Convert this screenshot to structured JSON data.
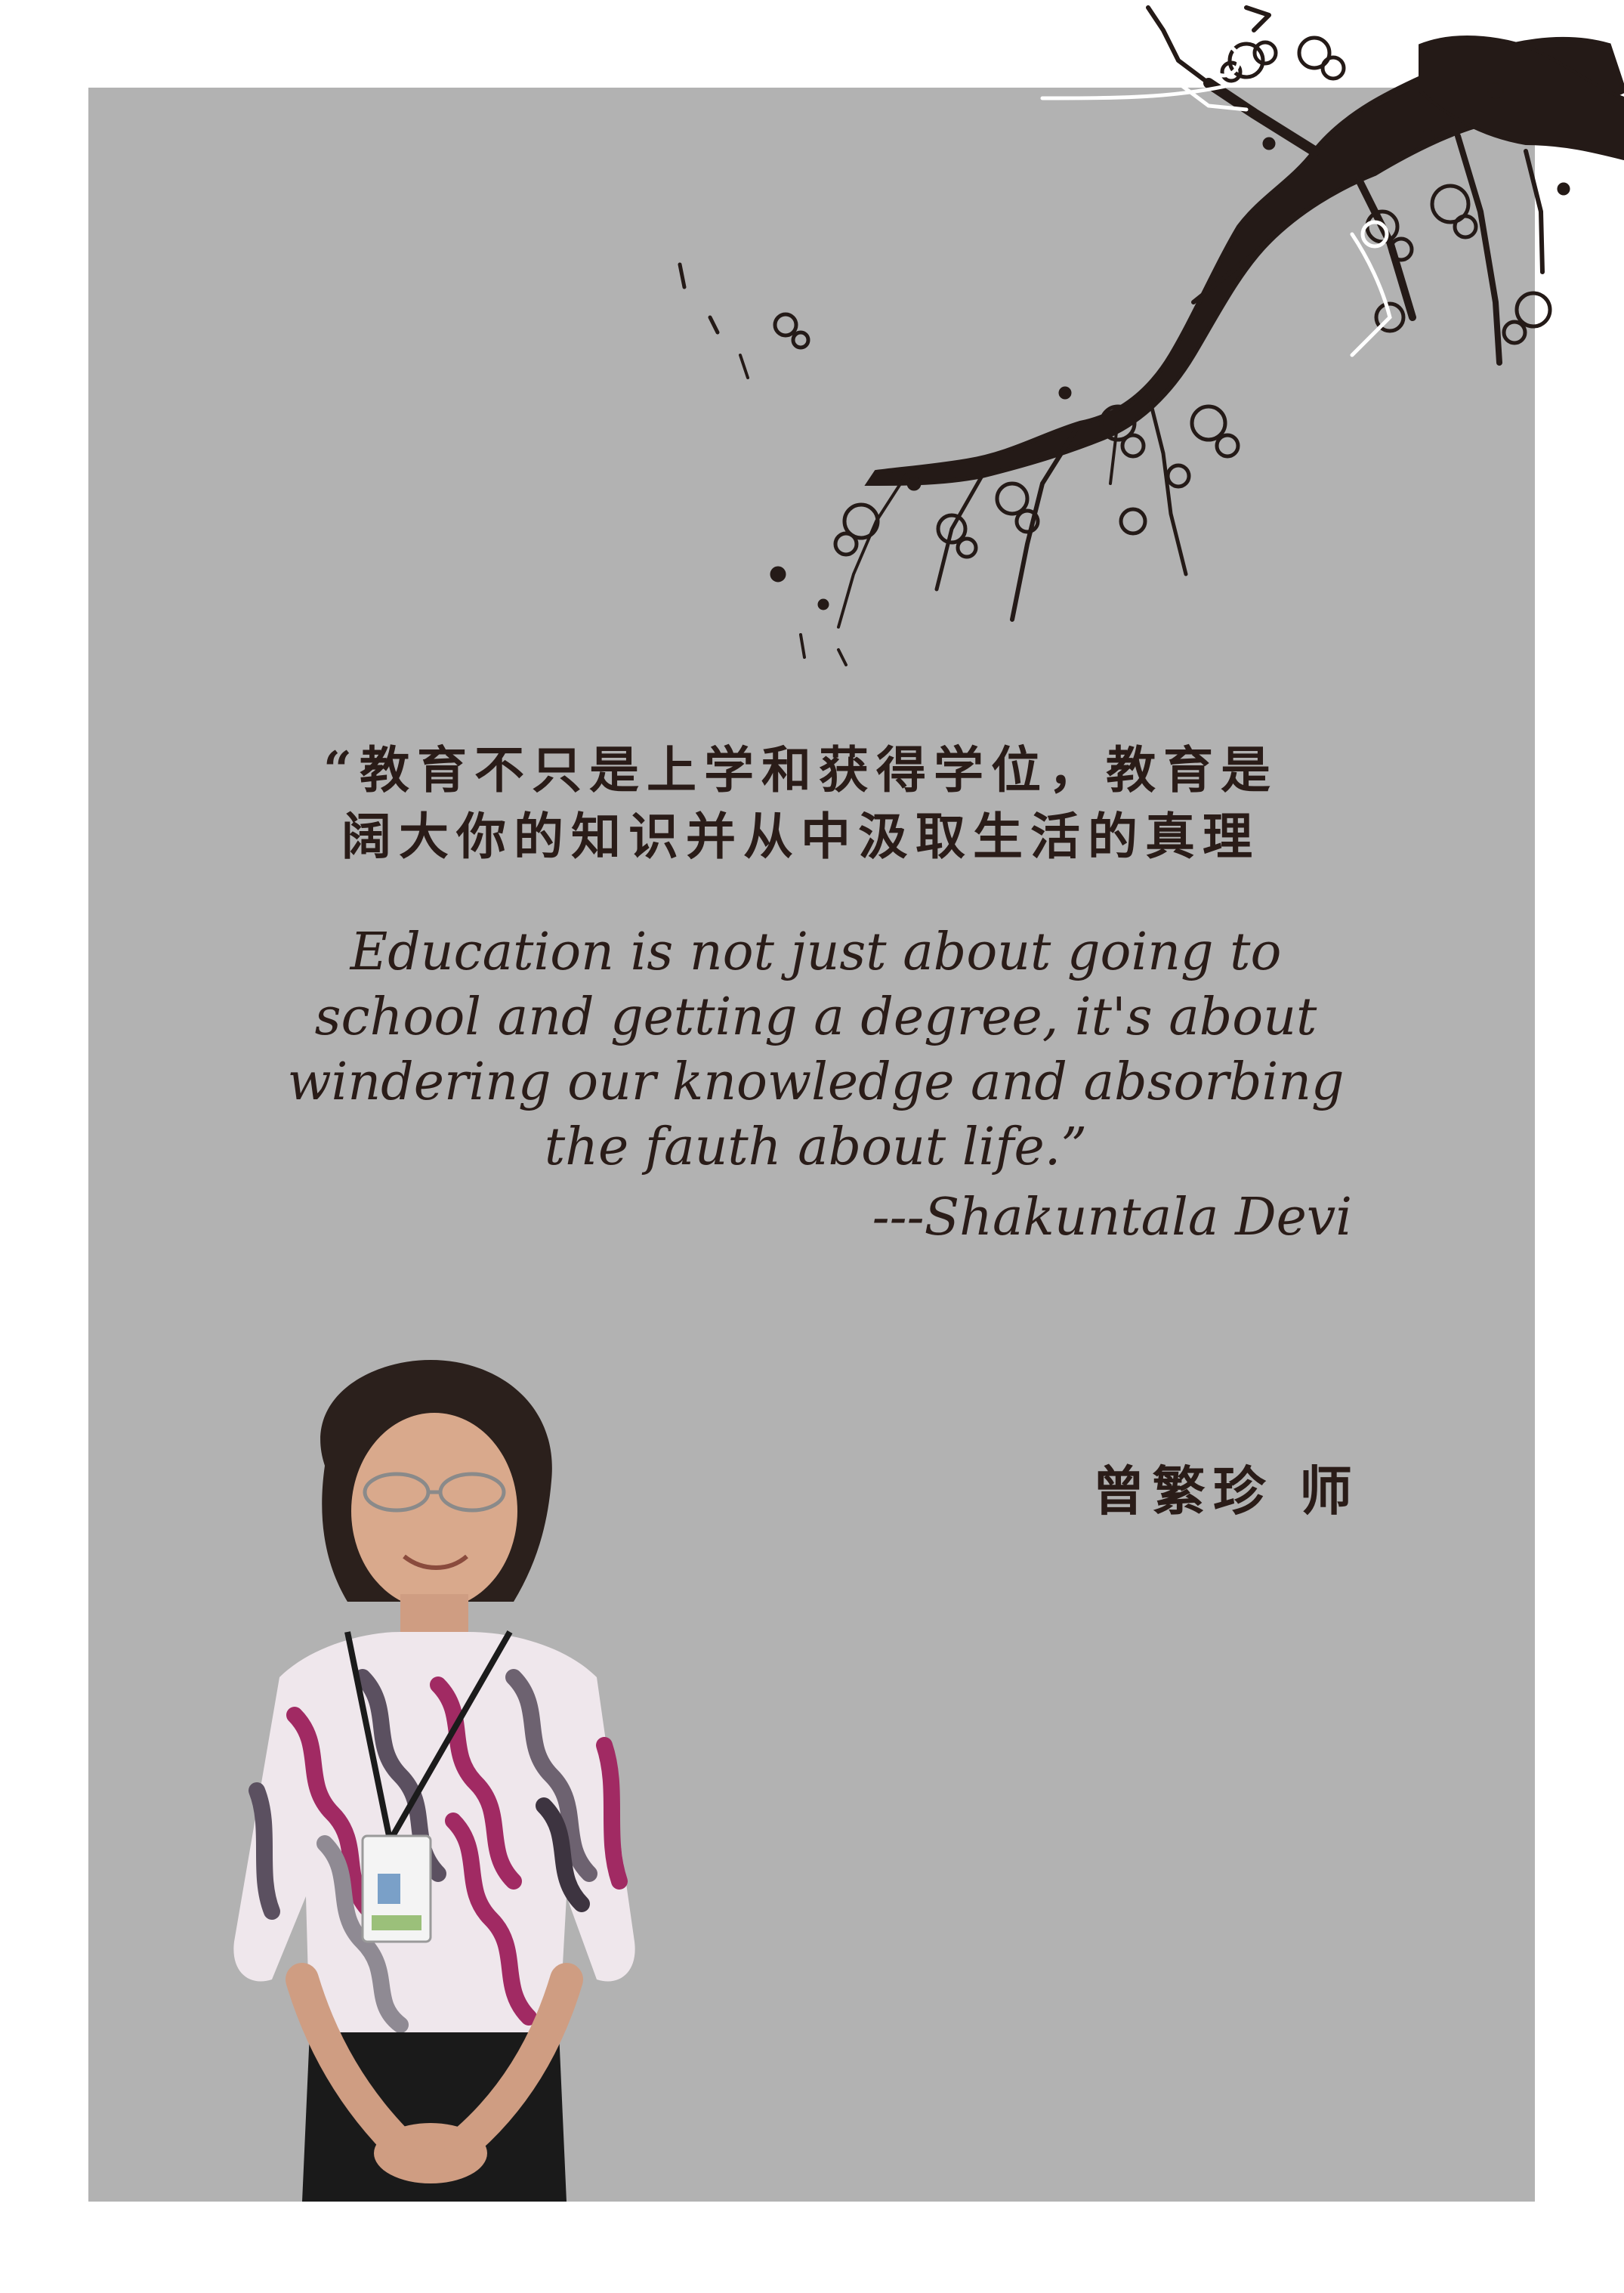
{
  "quote": {
    "zh_line1": "“教育不只是上学和获得学位，教育是",
    "zh_line2": "阔大你的知识并从中汲取生活的真理",
    "en_lines": [
      "Education is not just about going to",
      "school and getting a degree, it's about",
      "windering our knowledge and absorbing",
      "the fauth about life.”"
    ],
    "author": "---Shakuntala Devi"
  },
  "teacher": {
    "name": "曾繁珍 师"
  },
  "colors": {
    "panel": "#b2b2b2",
    "ink": "#2a1c18",
    "page": "#ffffff"
  },
  "images": {
    "branch": "plum-blossom-branch-ink-illustration",
    "portrait": "teacher-portrait-photo"
  }
}
